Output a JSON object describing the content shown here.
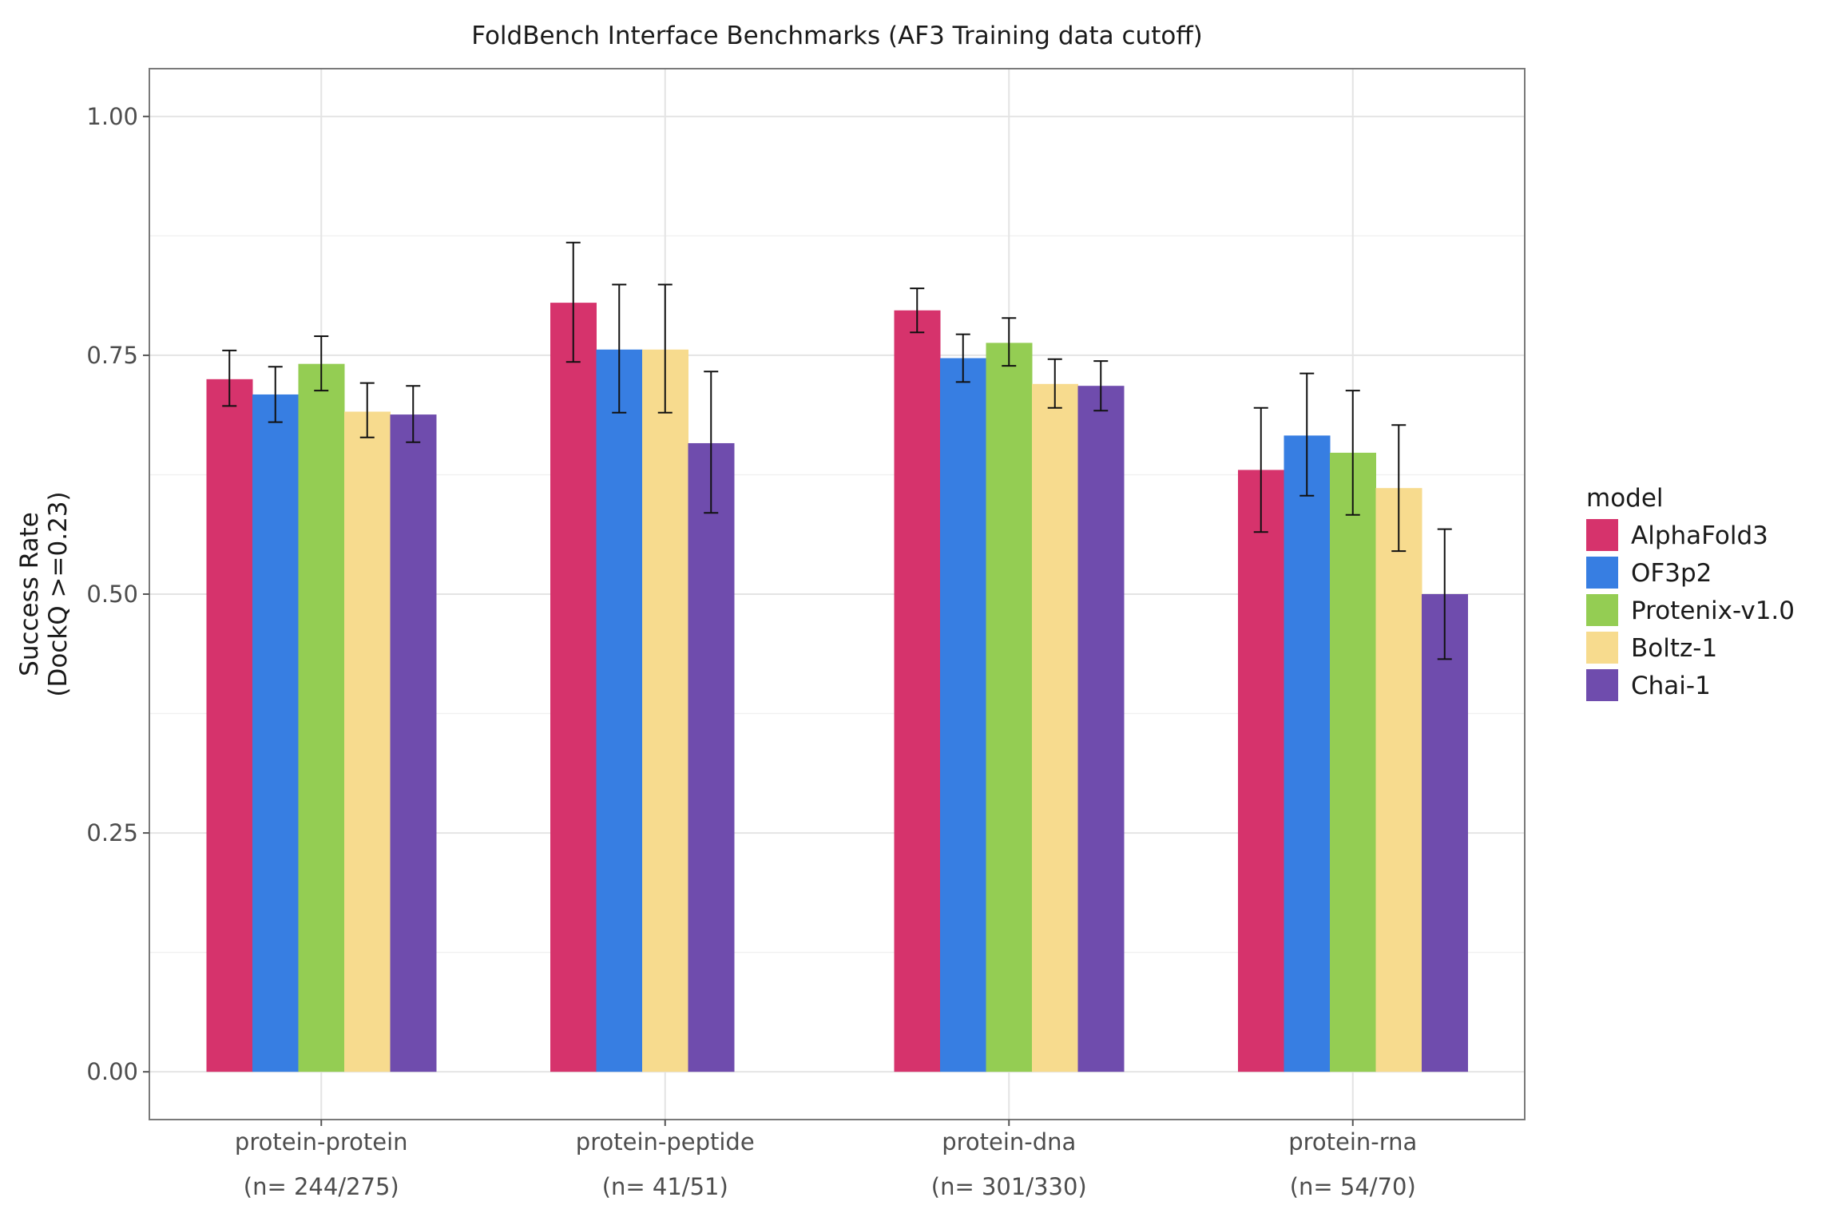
{
  "chart_data": {
    "type": "bar",
    "title": "FoldBench Interface Benchmarks (AF3 Training data cutoff)",
    "xlabel": "",
    "ylabel": "Success Rate",
    "ylabel_sub": "(DockQ >=0.23)",
    "ylim": [
      -0.05,
      1.05
    ],
    "yticks": [
      0.0,
      0.25,
      0.5,
      0.75,
      1.0
    ],
    "ytick_labels": [
      "0.00",
      "0.25",
      "0.50",
      "0.75",
      "1.00"
    ],
    "grid": true,
    "legend": {
      "title": "model",
      "position": "right"
    },
    "categories": [
      "protein-protein",
      "protein-peptide",
      "protein-dna",
      "protein-rna"
    ],
    "category_counts": [
      "(n= 244/275)",
      "(n= 41/51)",
      "(n= 301/330)",
      "(n= 54/70)"
    ],
    "series": [
      {
        "name": "AlphaFold3",
        "color": "#D6336C",
        "values": [
          0.725,
          0.805,
          0.797,
          0.63
        ],
        "err_low": [
          0.697,
          0.743,
          0.774,
          0.565
        ],
        "err_high": [
          0.755,
          0.868,
          0.82,
          0.695
        ]
      },
      {
        "name": "OF3p2",
        "color": "#377EE2",
        "values": [
          0.709,
          0.756,
          0.747,
          0.666
        ],
        "err_low": [
          0.68,
          0.69,
          0.722,
          0.603
        ],
        "err_high": [
          0.738,
          0.824,
          0.772,
          0.731
        ]
      },
      {
        "name": "Protenix-v1.0",
        "color": "#94CD53",
        "values": [
          0.741,
          null,
          0.763,
          0.648
        ],
        "err_low": [
          0.713,
          null,
          0.739,
          0.583
        ],
        "err_high": [
          0.77,
          null,
          0.789,
          0.713
        ]
      },
      {
        "name": "Boltz-1",
        "color": "#F7DB8E",
        "values": [
          0.691,
          0.756,
          0.72,
          0.611
        ],
        "err_low": [
          0.664,
          0.69,
          0.695,
          0.545
        ],
        "err_high": [
          0.721,
          0.824,
          0.746,
          0.677
        ]
      },
      {
        "name": "Chai-1",
        "color": "#6F4CAD",
        "values": [
          0.688,
          0.658,
          0.718,
          0.5
        ],
        "err_low": [
          0.659,
          0.585,
          0.692,
          0.432
        ],
        "err_high": [
          0.718,
          0.733,
          0.744,
          0.568
        ]
      }
    ]
  }
}
